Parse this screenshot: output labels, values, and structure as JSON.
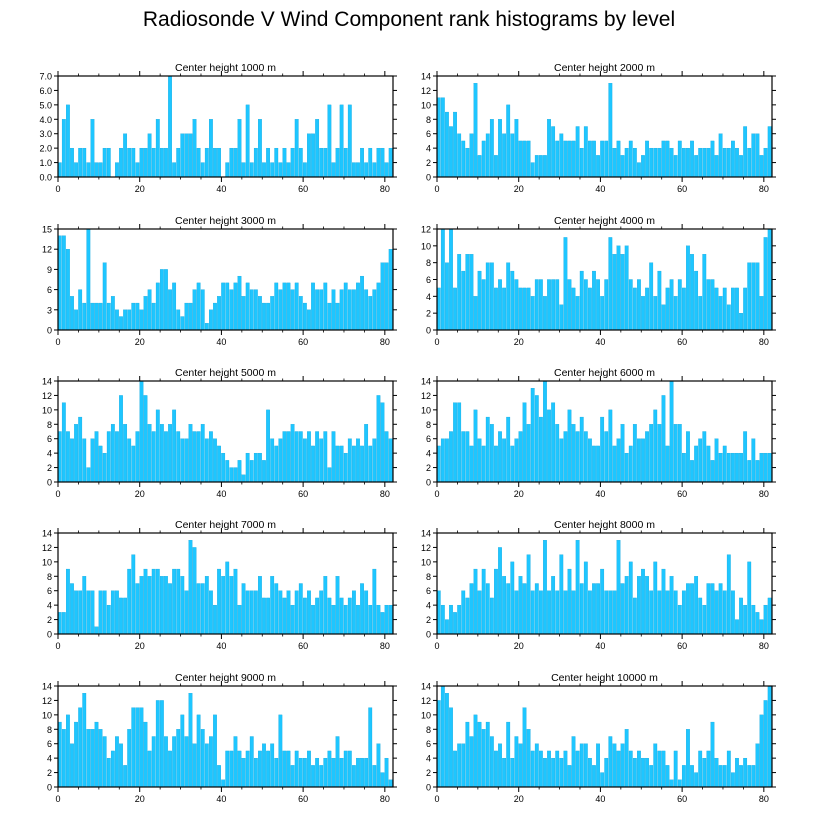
{
  "figure": {
    "title": "Radiosonde V Wind Component rank histograms by level"
  },
  "colors": {
    "bar": "#1ec6ff",
    "bar_edge": "#0aa0d8",
    "axis": "#000000"
  },
  "chart_data": [
    {
      "type": "bar",
      "title": "Center height 1000 m",
      "xlabel": "",
      "ylabel": "",
      "x_ticks": [
        0,
        20,
        40,
        60,
        80
      ],
      "xlim": [
        0,
        82
      ],
      "ylim": [
        0,
        7
      ],
      "y_ticks": [
        0,
        1,
        2,
        3,
        4,
        5,
        6,
        7
      ],
      "y_tick_labels": [
        "0.0",
        "1.0",
        "2.0",
        "3.0",
        "4.0",
        "5.0",
        "6.0",
        "7.0"
      ],
      "values": [
        1,
        4,
        5,
        2,
        1,
        2,
        2,
        1,
        4,
        1,
        1,
        2,
        2,
        0,
        1,
        2,
        3,
        2,
        2,
        1,
        2,
        2,
        3,
        2,
        4,
        2,
        2,
        7,
        1,
        2,
        3,
        3,
        3,
        4,
        2,
        1,
        2,
        4,
        2,
        2,
        0,
        1,
        2,
        2,
        4,
        1,
        5,
        1,
        2,
        4,
        1,
        2,
        1,
        2,
        1,
        2,
        1,
        2,
        4,
        2,
        1,
        3,
        3,
        4,
        2,
        2,
        5,
        1,
        2,
        5,
        2,
        5,
        1,
        1,
        2,
        1,
        2,
        1,
        2,
        2,
        1,
        2
      ]
    },
    {
      "type": "bar",
      "title": "Center height 2000 m",
      "xlabel": "",
      "ylabel": "",
      "x_ticks": [
        0,
        20,
        40,
        60,
        80
      ],
      "xlim": [
        0,
        82
      ],
      "ylim": [
        0,
        14
      ],
      "y_ticks": [
        0,
        2,
        4,
        6,
        8,
        10,
        12,
        14
      ],
      "y_tick_labels": [
        "0",
        "2",
        "4",
        "6",
        "8",
        "10",
        "12",
        "14"
      ],
      "values": [
        11,
        11,
        9,
        7,
        9,
        6,
        5,
        4,
        6,
        13,
        3,
        5,
        6,
        8,
        3,
        8,
        6,
        10,
        6,
        8,
        5,
        5,
        5,
        2,
        3,
        3,
        3,
        8,
        7,
        5,
        6,
        5,
        5,
        5,
        7,
        4,
        7,
        5,
        5,
        3,
        5,
        5,
        13,
        4,
        5,
        3,
        4,
        5,
        4,
        2,
        3,
        5,
        4,
        4,
        4,
        5,
        5,
        4,
        3,
        5,
        4,
        4,
        5,
        3,
        4,
        4,
        4,
        5,
        3,
        6,
        4,
        4,
        5,
        4,
        3,
        7,
        4,
        6,
        6,
        3,
        4,
        7
      ]
    },
    {
      "type": "bar",
      "title": "Center height 3000 m",
      "xlabel": "",
      "ylabel": "",
      "x_ticks": [
        0,
        20,
        40,
        60,
        80
      ],
      "xlim": [
        0,
        82
      ],
      "ylim": [
        0,
        15
      ],
      "y_ticks": [
        0,
        3,
        6,
        9,
        12,
        15
      ],
      "y_tick_labels": [
        "0",
        "3",
        "6",
        "9",
        "12",
        "15"
      ],
      "values": [
        14,
        14,
        12,
        5,
        3,
        6,
        4,
        15,
        4,
        4,
        4,
        10,
        4,
        5,
        3,
        2,
        3,
        3,
        4,
        4,
        3,
        5,
        6,
        4,
        7,
        9,
        9,
        6,
        7,
        3,
        2,
        4,
        4,
        6,
        7,
        6,
        1,
        3,
        4,
        5,
        7,
        7,
        6,
        7,
        8,
        5,
        7,
        6,
        6,
        5,
        4,
        4,
        5,
        7,
        6,
        7,
        7,
        6,
        7,
        5,
        4,
        3,
        7,
        6,
        6,
        7,
        4,
        6,
        4,
        6,
        7,
        6,
        6,
        7,
        8,
        6,
        5,
        6,
        7,
        10,
        10,
        12
      ]
    },
    {
      "type": "bar",
      "title": "Center height 4000 m",
      "xlabel": "",
      "ylabel": "",
      "x_ticks": [
        0,
        20,
        40,
        60,
        80
      ],
      "xlim": [
        0,
        82
      ],
      "ylim": [
        0,
        12
      ],
      "y_ticks": [
        0,
        2,
        4,
        6,
        8,
        10,
        12
      ],
      "y_tick_labels": [
        "0",
        "2",
        "4",
        "6",
        "8",
        "10",
        "12"
      ],
      "values": [
        5,
        12,
        8,
        12,
        5,
        9,
        7,
        9,
        9,
        4,
        7,
        6,
        8,
        8,
        5,
        6,
        5,
        8,
        7,
        6,
        5,
        5,
        5,
        4,
        6,
        6,
        4,
        6,
        6,
        6,
        3,
        11,
        6,
        5,
        4,
        7,
        6,
        5,
        7,
        6,
        4,
        6,
        11,
        9,
        10,
        9,
        10,
        6,
        5,
        6,
        4,
        5,
        8,
        4,
        7,
        3,
        5,
        6,
        4,
        6,
        5,
        10,
        9,
        7,
        4,
        9,
        6,
        6,
        5,
        4,
        5,
        3,
        5,
        5,
        2,
        5,
        8,
        8,
        8,
        4,
        11,
        12
      ]
    },
    {
      "type": "bar",
      "title": "Center height 5000 m",
      "xlabel": "",
      "ylabel": "",
      "x_ticks": [
        0,
        20,
        40,
        60,
        80
      ],
      "xlim": [
        0,
        82
      ],
      "ylim": [
        0,
        14
      ],
      "y_ticks": [
        0,
        2,
        4,
        6,
        8,
        10,
        12,
        14
      ],
      "y_tick_labels": [
        "0",
        "2",
        "4",
        "6",
        "8",
        "10",
        "12",
        "14"
      ],
      "values": [
        7,
        11,
        7,
        6,
        8,
        9,
        6,
        2,
        6,
        7,
        5,
        4,
        7,
        8,
        7,
        12,
        8,
        6,
        5,
        7,
        14,
        12,
        8,
        7,
        10,
        8,
        7,
        8,
        10,
        7,
        6,
        6,
        8,
        7,
        7,
        8,
        6,
        7,
        6,
        5,
        4,
        3,
        2,
        2,
        3,
        1,
        4,
        3,
        4,
        4,
        3,
        10,
        6,
        5,
        6,
        7,
        7,
        8,
        7,
        7,
        6,
        7,
        5,
        7,
        6,
        7,
        2,
        7,
        5,
        5,
        4,
        6,
        5,
        6,
        5,
        8,
        5,
        6,
        12,
        11,
        7,
        6
      ]
    },
    {
      "type": "bar",
      "title": "Center height 6000 m",
      "xlabel": "",
      "ylabel": "",
      "x_ticks": [
        0,
        20,
        40,
        60,
        80
      ],
      "xlim": [
        0,
        82
      ],
      "ylim": [
        0,
        14
      ],
      "y_ticks": [
        0,
        2,
        4,
        6,
        8,
        10,
        12,
        14
      ],
      "y_tick_labels": [
        "0",
        "2",
        "4",
        "6",
        "8",
        "10",
        "12",
        "14"
      ],
      "values": [
        5,
        6,
        6,
        7,
        11,
        11,
        7,
        7,
        5,
        10,
        6,
        5,
        9,
        8,
        5,
        7,
        6,
        9,
        5,
        6,
        7,
        11,
        8,
        13,
        12,
        9,
        14,
        10,
        11,
        8,
        6,
        7,
        10,
        8,
        7,
        9,
        7,
        6,
        5,
        5,
        9,
        7,
        10,
        5,
        6,
        8,
        4,
        5,
        8,
        6,
        6,
        7,
        8,
        10,
        8,
        12,
        5,
        14,
        8,
        8,
        4,
        7,
        3,
        5,
        6,
        7,
        5,
        3,
        6,
        4,
        5,
        4,
        4,
        4,
        4,
        7,
        3,
        6,
        3,
        4,
        4,
        4
      ]
    },
    {
      "type": "bar",
      "title": "Center height 7000 m",
      "xlabel": "",
      "ylabel": "",
      "x_ticks": [
        0,
        20,
        40,
        60,
        80
      ],
      "xlim": [
        0,
        82
      ],
      "ylim": [
        0,
        14
      ],
      "y_ticks": [
        0,
        2,
        4,
        6,
        8,
        10,
        12,
        14
      ],
      "y_tick_labels": [
        "0",
        "2",
        "4",
        "6",
        "8",
        "10",
        "12",
        "14"
      ],
      "values": [
        3,
        3,
        9,
        7,
        6,
        6,
        8,
        6,
        6,
        1,
        6,
        6,
        4,
        6,
        6,
        5,
        5,
        9,
        11,
        7,
        8,
        9,
        8,
        9,
        9,
        8,
        8,
        7,
        9,
        9,
        8,
        6,
        13,
        12,
        7,
        7,
        8,
        6,
        4,
        9,
        8,
        10,
        8,
        9,
        4,
        7,
        6,
        6,
        6,
        8,
        5,
        5,
        8,
        7,
        6,
        5,
        6,
        4,
        6,
        7,
        5,
        6,
        4,
        5,
        6,
        8,
        5,
        4,
        8,
        5,
        4,
        5,
        6,
        4,
        7,
        6,
        4,
        9,
        4,
        3,
        4,
        4
      ]
    },
    {
      "type": "bar",
      "title": "Center height 8000 m",
      "xlabel": "",
      "ylabel": "",
      "x_ticks": [
        0,
        20,
        40,
        60,
        80
      ],
      "xlim": [
        0,
        82
      ],
      "ylim": [
        0,
        14
      ],
      "y_ticks": [
        0,
        2,
        4,
        6,
        8,
        10,
        12,
        14
      ],
      "y_tick_labels": [
        "0",
        "2",
        "4",
        "6",
        "8",
        "10",
        "12",
        "14"
      ],
      "values": [
        6,
        4,
        2,
        4,
        3,
        4,
        6,
        5,
        7,
        9,
        6,
        9,
        7,
        5,
        9,
        12,
        8,
        7,
        10,
        6,
        8,
        7,
        11,
        6,
        7,
        6,
        13,
        6,
        8,
        6,
        11,
        6,
        9,
        6,
        13,
        7,
        10,
        6,
        7,
        7,
        9,
        6,
        6,
        6,
        13,
        7,
        8,
        10,
        5,
        8,
        9,
        8,
        6,
        10,
        6,
        9,
        6,
        8,
        6,
        4,
        6,
        7,
        7,
        8,
        5,
        4,
        7,
        7,
        6,
        7,
        6,
        11,
        6,
        2,
        5,
        4,
        10,
        4,
        3,
        2,
        4,
        5
      ]
    },
    {
      "type": "bar",
      "title": "Center height 9000 m",
      "xlabel": "",
      "ylabel": "",
      "x_ticks": [
        0,
        20,
        40,
        60,
        80
      ],
      "xlim": [
        0,
        82
      ],
      "ylim": [
        0,
        14
      ],
      "y_ticks": [
        0,
        2,
        4,
        6,
        8,
        10,
        12,
        14
      ],
      "y_tick_labels": [
        "0",
        "2",
        "4",
        "6",
        "8",
        "10",
        "12",
        "14"
      ],
      "values": [
        9,
        8,
        10,
        6,
        9,
        11,
        13,
        8,
        8,
        9,
        8,
        7,
        4,
        5,
        7,
        6,
        3,
        8,
        11,
        11,
        11,
        9,
        5,
        7,
        12,
        12,
        7,
        5,
        7,
        8,
        10,
        7,
        13,
        6,
        10,
        8,
        6,
        7,
        10,
        3,
        1,
        5,
        5,
        7,
        5,
        4,
        5,
        7,
        4,
        5,
        6,
        5,
        6,
        4,
        10,
        5,
        5,
        3,
        5,
        4,
        4,
        5,
        3,
        4,
        3,
        4,
        5,
        4,
        7,
        4,
        5,
        5,
        3,
        4,
        4,
        4,
        11,
        3,
        6,
        2,
        4,
        1
      ]
    },
    {
      "type": "bar",
      "title": "Center height 10000 m",
      "xlabel": "",
      "ylabel": "",
      "x_ticks": [
        0,
        20,
        40,
        60,
        80
      ],
      "xlim": [
        0,
        82
      ],
      "ylim": [
        0,
        14
      ],
      "y_ticks": [
        0,
        2,
        4,
        6,
        8,
        10,
        12,
        14
      ],
      "y_tick_labels": [
        "0",
        "2",
        "4",
        "6",
        "8",
        "10",
        "12",
        "14"
      ],
      "values": [
        12,
        14,
        13,
        11,
        5,
        6,
        6,
        9,
        7,
        10,
        9,
        8,
        9,
        7,
        5,
        6,
        4,
        9,
        4,
        7,
        6,
        11,
        8,
        5,
        6,
        5,
        4,
        5,
        4,
        5,
        4,
        5,
        3,
        7,
        5,
        6,
        6,
        4,
        3,
        6,
        2,
        4,
        7,
        6,
        5,
        6,
        8,
        5,
        4,
        5,
        4,
        4,
        3,
        6,
        5,
        5,
        3,
        1,
        5,
        1,
        3,
        8,
        3,
        2,
        5,
        4,
        5,
        9,
        4,
        3,
        3,
        5,
        2,
        4,
        3,
        4,
        3,
        3,
        6,
        10,
        12,
        14
      ]
    }
  ]
}
